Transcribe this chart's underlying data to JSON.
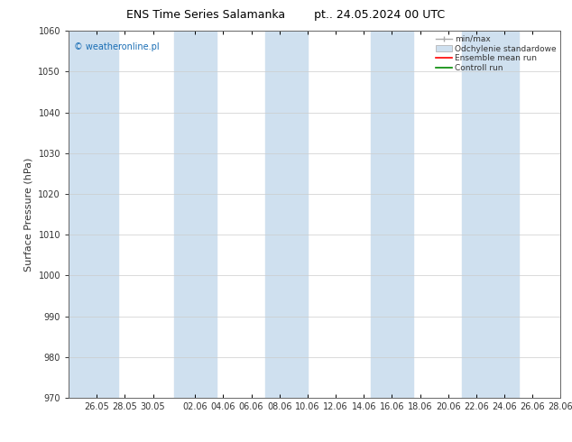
{
  "title_left": "ENS Time Series Salamanka",
  "title_right": "pt.. 24.05.2024 00 UTC",
  "ylabel": "Surface Pressure (hPa)",
  "ylim": [
    970,
    1060
  ],
  "yticks": [
    970,
    980,
    990,
    1000,
    1010,
    1020,
    1030,
    1040,
    1050,
    1060
  ],
  "x_tick_labels": [
    "26.05",
    "28.05",
    "30.05",
    "02.06",
    "04.06",
    "06.06",
    "08.06",
    "10.06",
    "12.06",
    "14.06",
    "16.06",
    "18.06",
    "20.06",
    "22.06",
    "24.06",
    "26.06",
    "28.06"
  ],
  "background_color": "#ffffff",
  "plot_bg_color": "#ffffff",
  "band_color": "#cfe0ef",
  "watermark": "© weatheronline.pl",
  "watermark_color": "#1a6eb5",
  "legend_labels": [
    "min/max",
    "Odchylenie standardowe",
    "Ensemble mean run",
    "Controll run"
  ],
  "minmax_color": "#aaaaaa",
  "ensemble_color": "#ff0000",
  "control_color": "#008800",
  "grid_color": "#cccccc",
  "tick_color": "#333333",
  "title_fontsize": 9,
  "label_fontsize": 8,
  "tick_fontsize": 7
}
